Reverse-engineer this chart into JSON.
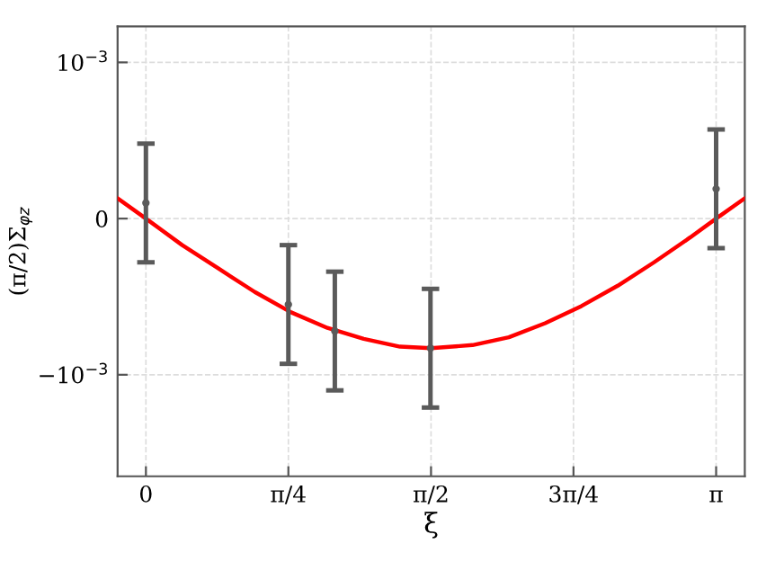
{
  "chart_data": {
    "type": "line",
    "xlabel": "ξ",
    "ylabel": "(π/2)Σ$_{φz}$",
    "xlim": [
      -0.156,
      3.3
    ],
    "ylim": [
      -0.00165,
      0.00123
    ],
    "xticks": [
      {
        "value": 0,
        "label": "0"
      },
      {
        "value": 0.785,
        "label": "π/4"
      },
      {
        "value": 1.571,
        "label": "π/2"
      },
      {
        "value": 2.356,
        "label": "3π/4"
      },
      {
        "value": 3.142,
        "label": "π"
      }
    ],
    "yticks": [
      {
        "value": 0.001,
        "label": "10$^{−3}$"
      },
      0,
      {
        "value": -0.001,
        "label": "−10$^{−3}$"
      }
    ],
    "grid": true,
    "series": [
      {
        "type": "scatter",
        "color": "#5a5a5a",
        "marker": "circle",
        "x": [
          0,
          0.785,
          1.041,
          1.568,
          3.142
        ],
        "values": [
          0.0001,
          -0.00055,
          -0.00072,
          -0.00083,
          0.00019
        ],
        "errors": [
          0.00038,
          0.00038,
          0.00038,
          0.00038,
          0.00038
        ]
      },
      {
        "color": "#ff0000",
        "marker": "none",
        "line_style": "solid",
        "x": [
          -0.156,
          0,
          0.2,
          0.4,
          0.6,
          0.8,
          1.0,
          1.2,
          1.4,
          1.571,
          1.8,
          2.0,
          2.2,
          2.4,
          2.6,
          2.8,
          3.0,
          3.142,
          3.3
        ],
        "values": [
          0.00013,
          0,
          -0.00017,
          -0.00032,
          -0.00047,
          -0.0006,
          -0.0007,
          -0.00077,
          -0.00082,
          -0.00083,
          -0.00081,
          -0.00076,
          -0.00067,
          -0.00056,
          -0.00043,
          -0.00028,
          -0.00012,
          0,
          0.00013
        ]
      }
    ]
  }
}
